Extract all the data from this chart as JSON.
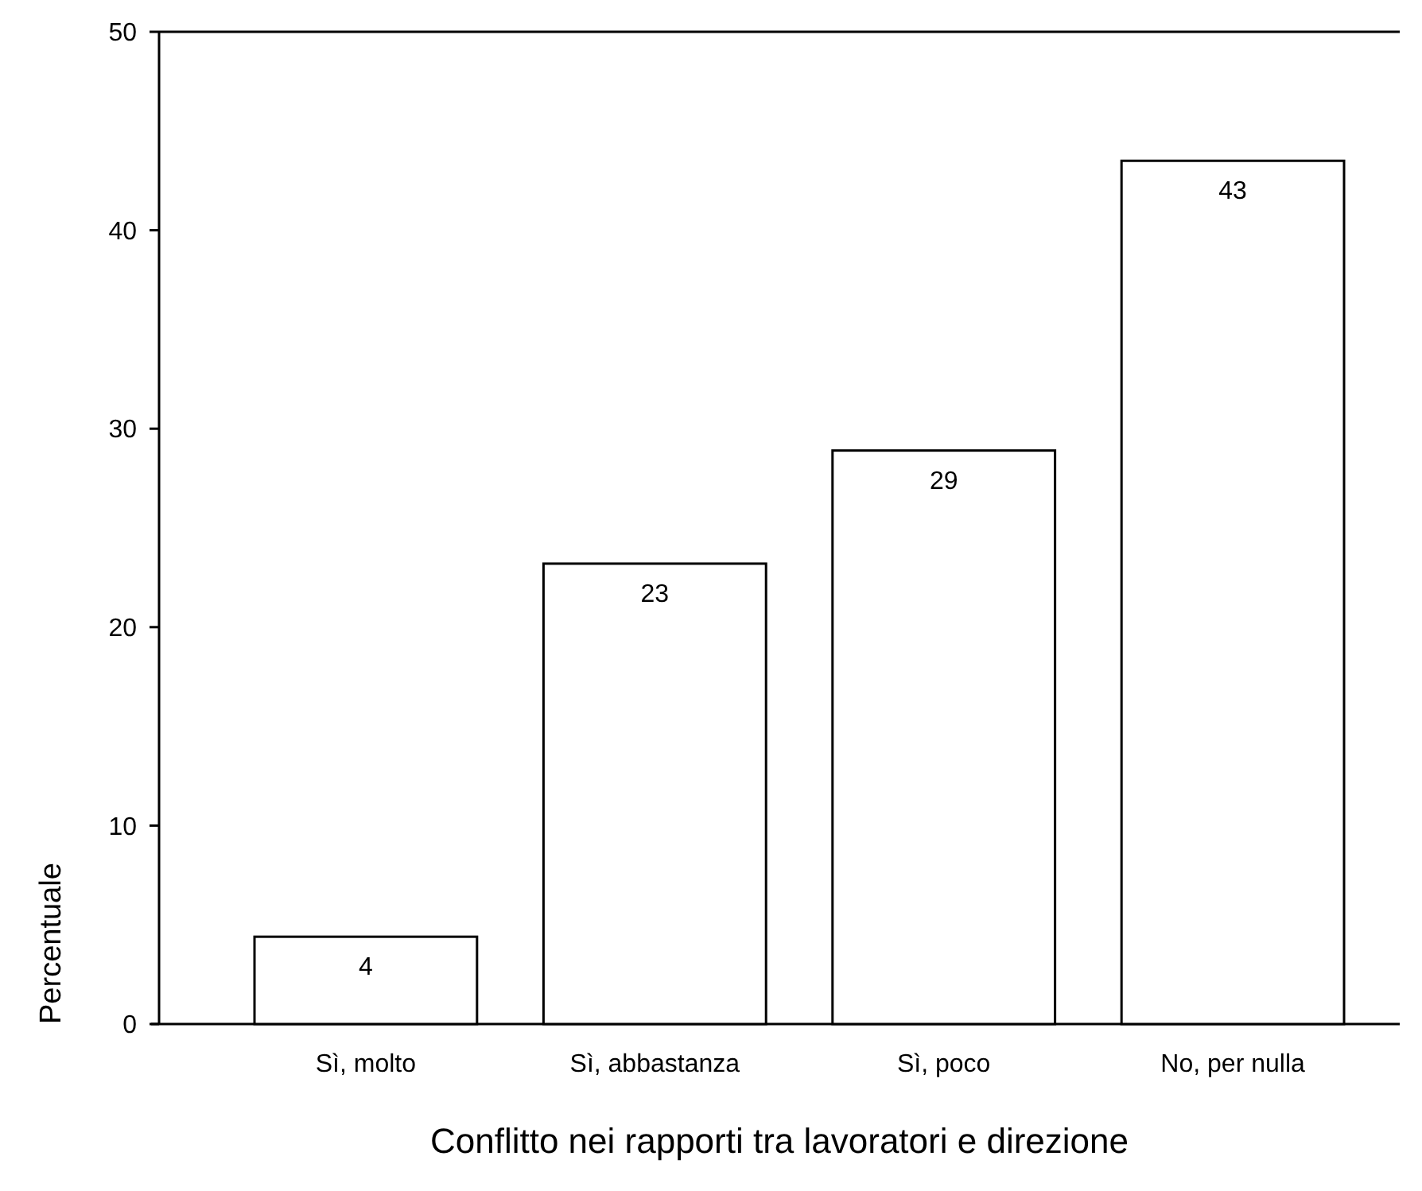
{
  "chart_data": {
    "type": "bar",
    "xlabel": "Conflitto nei rapporti tra lavoratori e direzione",
    "ylabel": "Percentuale",
    "categories": [
      "Sì, molto",
      "Sì, abbastanza",
      "Sì, poco",
      "No, per nulla"
    ],
    "values": [
      4.4,
      23.2,
      28.9,
      43.5
    ],
    "value_labels": [
      "4",
      "23",
      "29",
      "43"
    ],
    "color": "#ffffff",
    "ylim": [
      0,
      50
    ],
    "yticks": [
      0,
      10,
      20,
      30,
      40,
      50
    ],
    "grid": false
  }
}
